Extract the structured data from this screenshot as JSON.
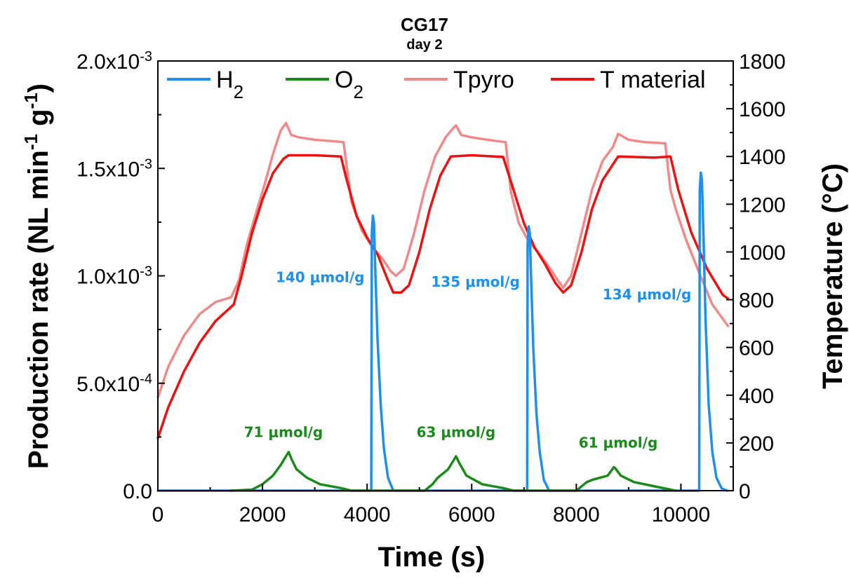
{
  "chart_data": {
    "type": "line",
    "title": "CG17",
    "subtitle": "day 2",
    "xlabel": "Time (s)",
    "ylabel_left": "Production rate (NL min-1 g-1)",
    "ylabel_left_parts": [
      "Production rate (NL min",
      "-1",
      " g",
      "-1",
      ")"
    ],
    "ylabel_right": "Temperature (°C)",
    "xlim": [
      0,
      11000
    ],
    "ylim_left": [
      0,
      0.002
    ],
    "ylim_right": [
      0,
      1800
    ],
    "x_ticks": [
      "0",
      "2000",
      "4000",
      "6000",
      "8000",
      "10000"
    ],
    "y_left_ticks": [
      "0.0",
      "5.0x10",
      "1.0x10",
      "1.5x10",
      "2.0x10"
    ],
    "y_left_tick_exponents": [
      "",
      "-4",
      "-3",
      "-3",
      "-3"
    ],
    "y_right_ticks": [
      "0",
      "200",
      "400",
      "600",
      "800",
      "1000",
      "1200",
      "1400",
      "1600",
      "1800"
    ],
    "legend_position": "top",
    "legend": [
      {
        "id": "h2",
        "label": "H",
        "sub": "2",
        "color": "#1E8FEA"
      },
      {
        "id": "o2",
        "label": "O",
        "sub": "2",
        "color": "#1A8A1A"
      },
      {
        "id": "tpyro",
        "label": "Tpyro",
        "color": "#F08A8A"
      },
      {
        "id": "tmat",
        "label": "T material",
        "color": "#EE1111"
      }
    ],
    "series": [
      {
        "name": "H2",
        "axis": "left",
        "color": "#1E8FEA",
        "x": [
          0,
          4080,
          4090,
          4110,
          4130,
          4160,
          4200,
          4260,
          4320,
          4400,
          4500,
          7060,
          7070,
          7090,
          7110,
          7140,
          7180,
          7240,
          7300,
          7380,
          7480,
          10350,
          10360,
          10380,
          10400,
          10430,
          10470,
          10530,
          10600,
          10680,
          10780,
          10880
        ],
        "y": [
          0,
          0,
          0.0012,
          0.00128,
          0.00125,
          0.001,
          0.0007,
          0.0004,
          0.0002,
          6e-05,
          0,
          0,
          0.00115,
          0.00123,
          0.0012,
          0.00095,
          0.00065,
          0.00035,
          0.00018,
          5e-05,
          0,
          0,
          0.0014,
          0.00148,
          0.00145,
          0.0012,
          0.0008,
          0.0004,
          0.00018,
          6e-05,
          1e-05,
          0
        ]
      },
      {
        "name": "O2",
        "axis": "left",
        "color": "#1A8A1A",
        "x": [
          1400,
          1800,
          2000,
          2200,
          2350,
          2450,
          2500,
          2550,
          2650,
          2850,
          3100,
          3500,
          3700,
          5100,
          5250,
          5350,
          5450,
          5550,
          5650,
          5700,
          5760,
          5900,
          6200,
          6600,
          6800,
          7100,
          8000,
          8200,
          8300,
          8450,
          8600,
          8720,
          8760,
          8850,
          9100,
          9500,
          9900
        ],
        "y": [
          0,
          5e-06,
          3e-05,
          7e-05,
          0.00012,
          0.00016,
          0.00018,
          0.00015,
          0.0001,
          6e-05,
          3e-05,
          1.2e-05,
          0,
          0,
          3e-05,
          6e-05,
          8e-05,
          0.0001,
          0.00014,
          0.00016,
          0.00013,
          7e-05,
          3e-05,
          1.2e-05,
          0,
          0,
          0,
          4e-05,
          5e-05,
          6e-05,
          7e-05,
          0.00011,
          0.0001,
          7e-05,
          4e-05,
          2e-05,
          0
        ]
      },
      {
        "name": "Tpyro",
        "axis": "right",
        "color": "#F08A8A",
        "x": [
          0,
          200,
          500,
          800,
          1100,
          1400,
          1550,
          1700,
          1900,
          2050,
          2200,
          2350,
          2450,
          2550,
          2700,
          3000,
          3300,
          3550,
          3700,
          3900,
          4100,
          4300,
          4450,
          4550,
          4700,
          4900,
          5100,
          5300,
          5500,
          5650,
          5700,
          5800,
          6000,
          6300,
          6650,
          6750,
          6900,
          7100,
          7300,
          7500,
          7650,
          7750,
          7900,
          8100,
          8300,
          8500,
          8700,
          8800,
          9000,
          9300,
          9700,
          9800,
          9900,
          10100,
          10300,
          10600,
          10900
        ],
        "y": [
          390,
          520,
          650,
          740,
          790,
          810,
          880,
          1030,
          1180,
          1290,
          1410,
          1510,
          1540,
          1490,
          1480,
          1470,
          1465,
          1460,
          1210,
          1090,
          1020,
          970,
          920,
          900,
          930,
          1080,
          1260,
          1400,
          1480,
          1520,
          1530,
          1490,
          1480,
          1470,
          1460,
          1250,
          1120,
          1040,
          990,
          930,
          880,
          850,
          900,
          1080,
          1260,
          1380,
          1440,
          1495,
          1470,
          1460,
          1455,
          1260,
          1180,
          1050,
          940,
          780,
          690
        ]
      },
      {
        "name": "T material",
        "axis": "right",
        "color": "#EE1111",
        "x": [
          0,
          200,
          500,
          800,
          1100,
          1450,
          1600,
          1800,
          2000,
          2200,
          2400,
          2500,
          3000,
          3500,
          3600,
          3800,
          4000,
          4200,
          4400,
          4500,
          4650,
          4800,
          5000,
          5200,
          5400,
          5600,
          6000,
          6600,
          6800,
          7000,
          7200,
          7400,
          7600,
          7750,
          7900,
          8100,
          8300,
          8500,
          8800,
          9500,
          9800,
          9950,
          10200,
          10500,
          10800,
          10900
        ],
        "y": [
          220,
          350,
          500,
          620,
          710,
          780,
          900,
          1080,
          1220,
          1330,
          1390,
          1405,
          1405,
          1400,
          1310,
          1150,
          1060,
          990,
          880,
          830,
          830,
          860,
          1000,
          1180,
          1320,
          1400,
          1405,
          1398,
          1260,
          1120,
          1020,
          950,
          870,
          830,
          860,
          1000,
          1180,
          1300,
          1400,
          1395,
          1400,
          1260,
          1080,
          930,
          820,
          805
        ]
      }
    ],
    "annotations": [
      {
        "text": "140 μmol/g",
        "x": 3950,
        "y": 0.00097,
        "color": "#1E8FEA",
        "anchor": "end"
      },
      {
        "text": "135 μmol/g",
        "x": 6920,
        "y": 0.00095,
        "color": "#1E8FEA",
        "anchor": "end"
      },
      {
        "text": "134 μmol/g",
        "x": 10200,
        "y": 0.00089,
        "color": "#1E8FEA",
        "anchor": "end"
      },
      {
        "text": "71 μmol/g",
        "x": 2400,
        "y": 0.00025,
        "color": "#1A8A1A",
        "anchor": "middle"
      },
      {
        "text": "63 μmol/g",
        "x": 5700,
        "y": 0.00025,
        "color": "#1A8A1A",
        "anchor": "middle"
      },
      {
        "text": "61 μmol/g",
        "x": 8800,
        "y": 0.0002,
        "color": "#1A8A1A",
        "anchor": "middle"
      }
    ]
  }
}
